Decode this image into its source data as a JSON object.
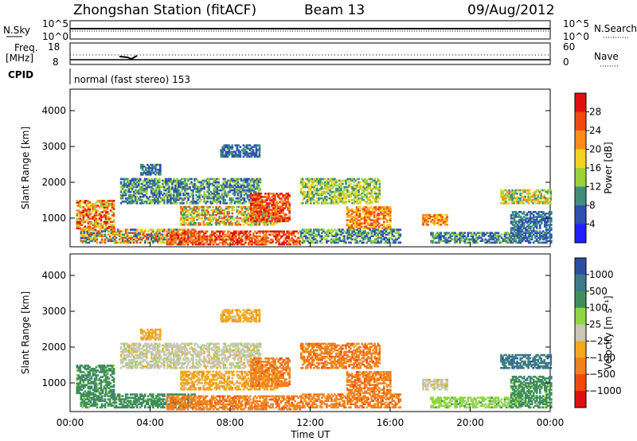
{
  "header": {
    "title": "Zhongshan Station (fitACF)",
    "beam": "Beam 13",
    "date": "09/Aug/2012"
  },
  "top_panels": {
    "nsky_label": "N.Sky",
    "nsky_ticks": [
      "10^5",
      "10^0"
    ],
    "nsearch_label": "N.Search",
    "nsearch_ticks": [
      "10^5",
      "10^0"
    ],
    "freq_label_1": "Freq.",
    "freq_label_2": "[MHz]",
    "freq_ticks": [
      "18",
      "8"
    ],
    "nave_label": "Nave",
    "nave_ticks": [
      "60",
      "0"
    ],
    "cpid_label": "CPID",
    "cpid_text": "normal (fast stereo) 153"
  },
  "chart_data": [
    {
      "type": "heatmap",
      "name": "power",
      "ylabel": "Slant Range [km]",
      "yticks": [
        "1000",
        "2000",
        "3000",
        "4000"
      ],
      "ylim": [
        200,
        4600
      ],
      "xlim": [
        0,
        24
      ],
      "colorbar": {
        "label": "Power [dB]",
        "ticks": [
          "4",
          "8",
          "12",
          "16",
          "20",
          "24",
          "28"
        ],
        "colors": [
          "#1f1fff",
          "#2f4fb3",
          "#3f8f7a",
          "#9bd23a",
          "#f5d21e",
          "#ff8c1a",
          "#f04a10",
          "#e01010"
        ]
      }
    },
    {
      "type": "heatmap",
      "name": "velocity",
      "ylabel": "Slant Range [km]",
      "yticks": [
        "1000",
        "2000",
        "3000",
        "4000"
      ],
      "ylim": [
        200,
        4600
      ],
      "xlim": [
        0,
        24
      ],
      "xticks": [
        "00:00",
        "04:00",
        "08:00",
        "12:00",
        "16:00",
        "20:00",
        "00:00"
      ],
      "xlabel": "Time UT",
      "colorbar": {
        "label": "Velocity [m s⁻¹]",
        "ticks": [
          "1000",
          "500",
          "100",
          "25",
          "−25",
          "−100",
          "−500",
          "−1000"
        ],
        "colors": [
          "#2b4fa0",
          "#3e7a8a",
          "#3f8f5a",
          "#8fd640",
          "#c8c8b4",
          "#f5a81e",
          "#f08020",
          "#f04a10",
          "#e01010"
        ]
      }
    }
  ]
}
